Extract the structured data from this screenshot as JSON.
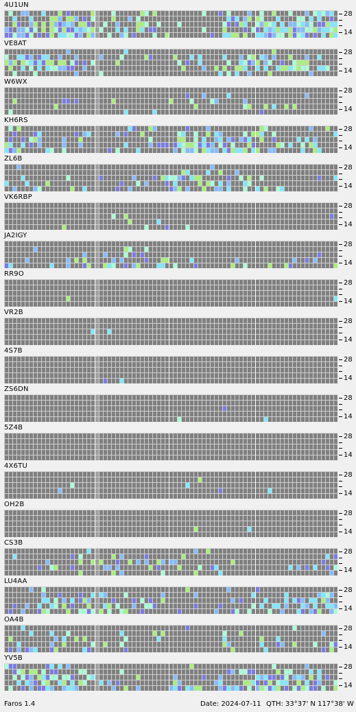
{
  "app_name": "Faros 1.4",
  "date_text": "Date: 2024-07-11",
  "qth_text": "QTH: 33°37' N  117°38' W",
  "band_scale": {
    "top_label": "28",
    "bottom_label": "14"
  },
  "colors": {
    "empty": "#808080",
    "grid_line": "#cfcfcf",
    "gap": "#a0a0a0",
    "levels": [
      "#7b7be6",
      "#84bcff",
      "#7ee8ff",
      "#a8ffd6",
      "#a8f07a"
    ]
  },
  "stations": [
    {
      "call": "4U1UN",
      "activity": {
        "28": 0.3,
        "24": 0.4,
        "21": 0.55,
        "18": 0.75,
        "14": 0.7
      }
    },
    {
      "call": "VE8AT",
      "activity": {
        "28": 0.08,
        "24": 0.35,
        "21": 0.45,
        "18": 0.35,
        "14": 0.2
      }
    },
    {
      "call": "W6WX",
      "activity": {
        "28": 0.02,
        "24": 0.08,
        "21": 0.15,
        "18": 0.15,
        "14": 0.05
      }
    },
    {
      "call": "KH6RS",
      "activity": {
        "28": 0.25,
        "24": 0.35,
        "21": 0.45,
        "18": 0.55,
        "14": 0.55
      }
    },
    {
      "call": "ZL6B",
      "activity": {
        "28": 0.05,
        "24": 0.15,
        "21": 0.25,
        "18": 0.25,
        "14": 0.2
      }
    },
    {
      "call": "VK6RBP",
      "activity": {
        "28": 0.0,
        "24": 0.01,
        "21": 0.05,
        "18": 0.1,
        "14": 0.1
      }
    },
    {
      "call": "JA2IGY",
      "activity": {
        "28": 0.0,
        "24": 0.02,
        "21": 0.08,
        "18": 0.3,
        "14": 0.25
      }
    },
    {
      "call": "RR9O",
      "activity": {
        "28": 0.0,
        "24": 0.0,
        "21": 0.0,
        "18": 0.02,
        "14": 0.0
      }
    },
    {
      "call": "VR2B",
      "activity": {
        "28": 0.0,
        "24": 0.0,
        "21": 0.01,
        "18": 0.0,
        "14": 0.0
      }
    },
    {
      "call": "4S7B",
      "activity": {
        "28": 0.0,
        "24": 0.0,
        "21": 0.0,
        "18": 0.0,
        "14": 0.01
      }
    },
    {
      "call": "ZS6DN",
      "activity": {
        "28": 0.0,
        "24": 0.01,
        "21": 0.02,
        "18": 0.02,
        "14": 0.06
      }
    },
    {
      "call": "5Z4B",
      "activity": {
        "28": 0.0,
        "24": 0.0,
        "21": 0.0,
        "18": 0.0,
        "14": 0.0
      }
    },
    {
      "call": "4X6TU",
      "activity": {
        "28": 0.0,
        "24": 0.01,
        "21": 0.02,
        "18": 0.02,
        "14": 0.01
      }
    },
    {
      "call": "OH2B",
      "activity": {
        "28": 0.0,
        "24": 0.0,
        "21": 0.0,
        "18": 0.02,
        "14": 0.0
      }
    },
    {
      "call": "CS3B",
      "activity": {
        "28": 0.05,
        "24": 0.15,
        "21": 0.25,
        "18": 0.3,
        "14": 0.15
      }
    },
    {
      "call": "LU4AA",
      "activity": {
        "28": 0.15,
        "24": 0.25,
        "21": 0.35,
        "18": 0.45,
        "14": 0.4
      }
    },
    {
      "call": "OA4B",
      "activity": {
        "28": 0.03,
        "24": 0.15,
        "21": 0.2,
        "18": 0.25,
        "14": 0.25
      }
    },
    {
      "call": "YV5B",
      "activity": {
        "28": 0.15,
        "24": 0.3,
        "21": 0.45,
        "18": 0.5,
        "14": 0.45
      }
    }
  ]
}
